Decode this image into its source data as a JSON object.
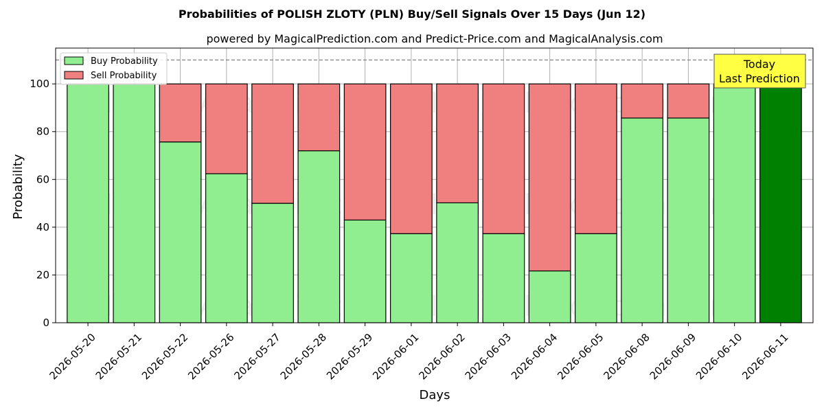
{
  "chart_data": {
    "type": "bar",
    "stacked": true,
    "title": "Probabilities of POLISH ZLOTY (PLN) Buy/Sell Signals Over 15 Days (Jun 12)",
    "subtitle": "powered by MagicalPrediction.com and Predict-Price.com and MagicalAnalysis.com",
    "xlabel": "Days",
    "ylabel": "Probability",
    "ylim": [
      0,
      115
    ],
    "yticks": [
      0,
      20,
      40,
      60,
      80,
      100
    ],
    "grid": true,
    "legend_position": "top-left",
    "reference_line": 110,
    "categories": [
      "2026-05-20",
      "2026-05-21",
      "2026-05-22",
      "2026-05-26",
      "2026-05-27",
      "2026-05-28",
      "2026-05-29",
      "2026-06-01",
      "2026-06-02",
      "2026-06-03",
      "2026-06-04",
      "2026-06-05",
      "2026-06-08",
      "2026-06-09",
      "2026-06-10",
      "2026-06-11"
    ],
    "series": [
      {
        "name": "Buy Probability",
        "color": "#90ee90",
        "values": [
          100,
          100,
          75.7,
          62.4,
          50,
          72,
          43,
          37.3,
          50.2,
          37.3,
          21.7,
          37.3,
          85.7,
          85.7,
          100,
          100
        ]
      },
      {
        "name": "Sell Probability",
        "color": "#f08080",
        "values": [
          0,
          0,
          24.3,
          37.6,
          50,
          28,
          57,
          62.7,
          49.8,
          62.7,
          78.3,
          62.7,
          14.3,
          14.3,
          0,
          0
        ]
      }
    ],
    "highlight": {
      "index": 15,
      "color": "#008000"
    },
    "annotation": {
      "lines": [
        "Today",
        "Last Prediction"
      ],
      "background": "#ffff44"
    },
    "watermarks": [
      "MagicalAnalysis.com",
      "MagicalPrediction.com"
    ]
  }
}
